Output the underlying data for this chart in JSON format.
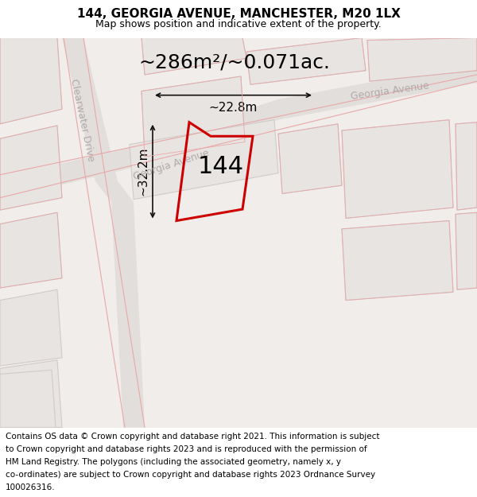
{
  "title": "144, GEORGIA AVENUE, MANCHESTER, M20 1LX",
  "subtitle": "Map shows position and indicative extent of the property.",
  "area_label": "~286m²/~0.071ac.",
  "property_number": "144",
  "dim_height": "~32.2m",
  "dim_width": "~22.8m",
  "footer_lines": [
    "Contains OS data © Crown copyright and database right 2021. This information is subject",
    "to Crown copyright and database rights 2023 and is reproduced with the permission of",
    "HM Land Registry. The polygons (including the associated geometry, namely x, y",
    "co-ordinates) are subject to Crown copyright and database rights 2023 Ordnance Survey",
    "100026316."
  ],
  "map_bg": "#f0edeb",
  "road_fill": "#e2dedc",
  "block_fill": "#e8e4e2",
  "block_edge": "#d0cbc8",
  "red_line": "#cc0000",
  "dim_line_color": "#111111",
  "pink_line": "#e8a8a8",
  "street_label_color": "#b0aaaa",
  "title_fontsize": 11,
  "subtitle_fontsize": 9,
  "footer_fontsize": 7.5,
  "area_fontsize": 18,
  "dim_fontsize": 11,
  "number_fontsize": 22
}
